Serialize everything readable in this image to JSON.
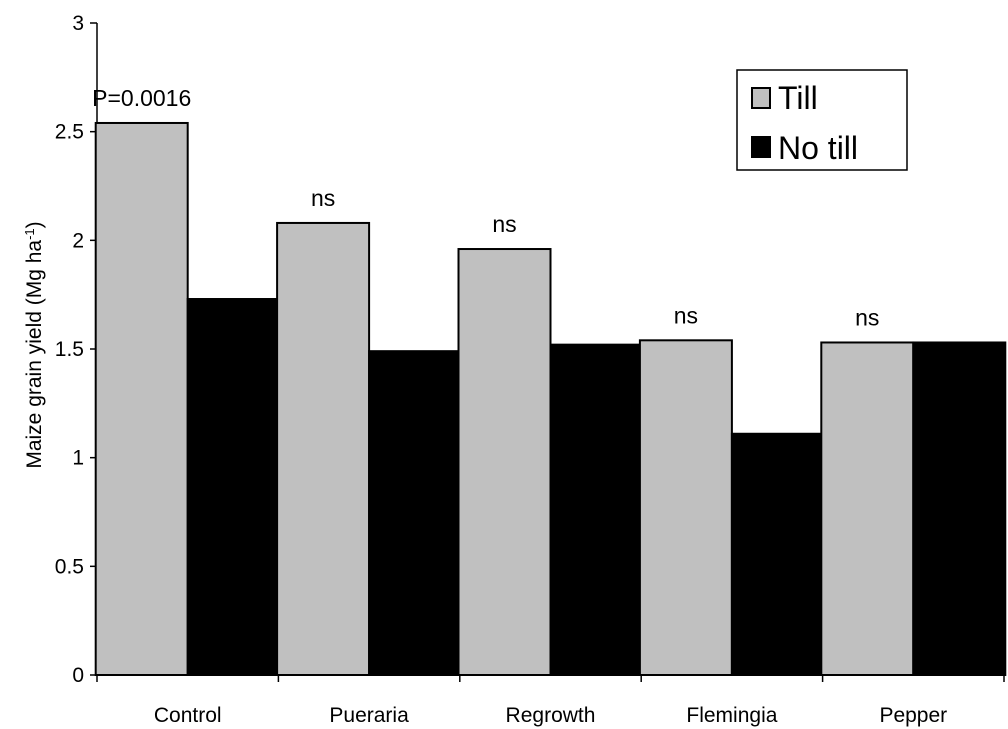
{
  "chart_data": {
    "type": "bar",
    "categories": [
      "Control",
      "Pueraria",
      "Regrowth",
      "Flemingia",
      "Pepper"
    ],
    "series": [
      {
        "name": "Till",
        "values": [
          2.54,
          2.08,
          1.96,
          1.54,
          1.53
        ],
        "color": "#c0c0c0"
      },
      {
        "name": "No till",
        "values": [
          1.73,
          1.49,
          1.52,
          1.11,
          1.53
        ],
        "color": "#000000"
      }
    ],
    "annotations": [
      "P=0.0016",
      "ns",
      "ns",
      "ns",
      "ns"
    ],
    "ylabel": {
      "main": "Maize grain yield (Mg ha",
      "sup": "-1",
      "end": ")"
    },
    "ylim": [
      0,
      3
    ],
    "yticks": [
      "0",
      "0.5",
      "1",
      "1.5",
      "2",
      "2.5",
      "3"
    ],
    "grid": false,
    "legend_position": "top-right"
  }
}
